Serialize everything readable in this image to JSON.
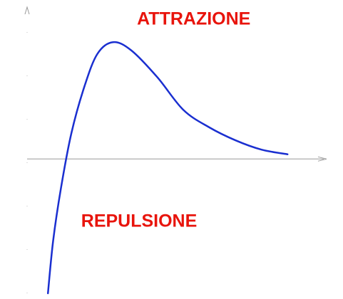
{
  "chart_data": {
    "type": "line",
    "title": "",
    "xlabel": "",
    "ylabel": "",
    "series": [
      {
        "color": "#1a2fd0",
        "x": [
          0.08,
          0.1,
          0.13,
          0.17,
          0.22,
          0.27,
          0.33,
          0.4,
          0.5,
          0.6,
          0.7,
          0.8,
          0.9,
          1.0
        ],
        "y": [
          -1.15,
          -0.7,
          -0.25,
          0.22,
          0.62,
          0.9,
          1.0,
          0.93,
          0.7,
          0.42,
          0.27,
          0.16,
          0.08,
          0.04
        ]
      }
    ],
    "xlim": [
      0,
      1.15
    ],
    "ylim": [
      -1.15,
      1.3
    ],
    "annotations": [
      {
        "text": "ATTRAZIONE",
        "color": "#e8140c",
        "x": 0.64,
        "y": 1.15
      },
      {
        "text": "REPULSIONE",
        "color": "#e8140c",
        "x": 0.43,
        "y": -0.58
      }
    ],
    "axis_color": "#999999"
  }
}
